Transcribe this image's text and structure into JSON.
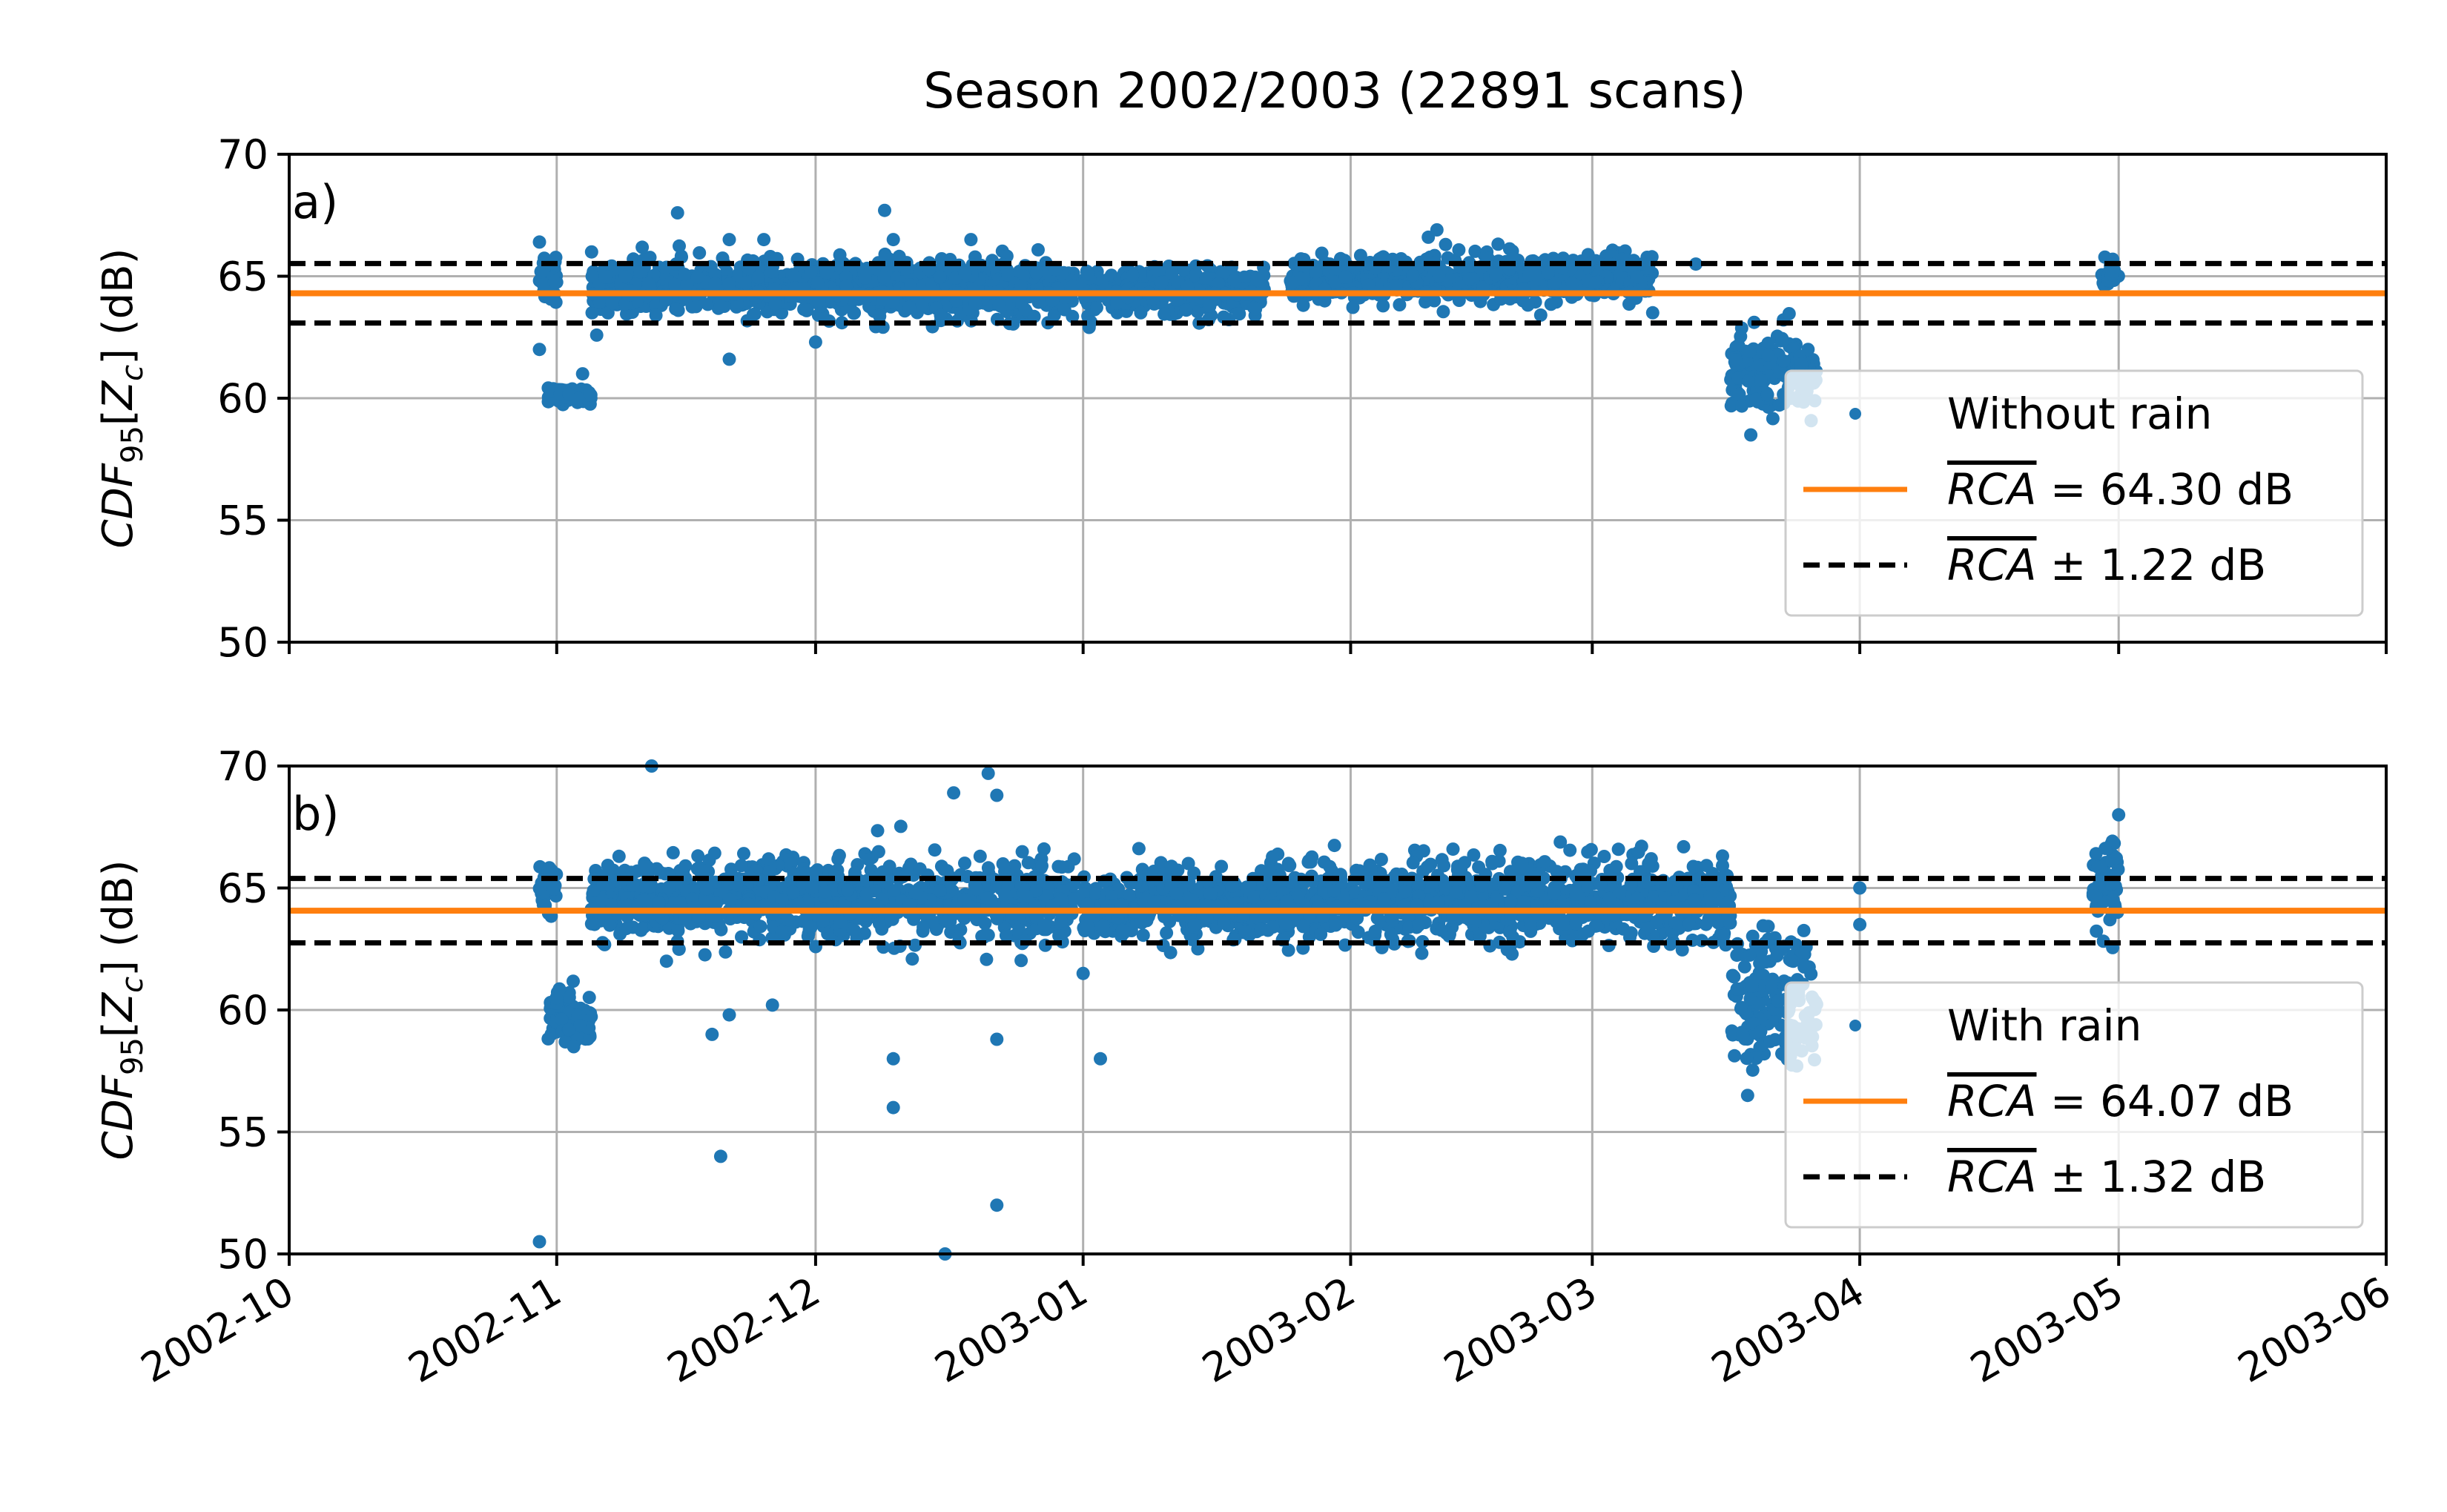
{
  "figure": {
    "title": "Season 2002/2003 (22891 scans)"
  },
  "chart_data": [
    {
      "type": "scatter",
      "panel_label": "a)",
      "ylabel": "CDF_95[Z_c] (dB)",
      "ylim": [
        50,
        70
      ],
      "yticks": [
        50,
        55,
        60,
        65,
        70
      ],
      "xlim": [
        "2002-10-01",
        "2003-06-01"
      ],
      "xticks": [
        "2002-10",
        "2002-11",
        "2002-12",
        "2003-01",
        "2003-02",
        "2003-03",
        "2003-04",
        "2003-05",
        "2003-06"
      ],
      "grid": true,
      "legend_position": "lower-right",
      "legend": {
        "points": "Without rain",
        "mean_name": "RCA",
        "mean_text": "= 64.30 dB",
        "band_name": "RCA",
        "band_text": "± 1.22 dB"
      },
      "rca_mean": 64.3,
      "rca_band": 1.22,
      "colors": {
        "points": "#1f77b4",
        "mean": "#ff7f0e",
        "band": "#000000"
      },
      "series": [
        {
          "name": "Without rain",
          "clusters": [
            {
              "start": "2002-10-30",
              "end": "2002-11-01",
              "center": 65.0,
              "spread": 0.6
            },
            {
              "start": "2002-10-31",
              "end": "2002-11-05",
              "center": 60.1,
              "spread": 0.15
            },
            {
              "start": "2002-11-05",
              "end": "2002-12-31",
              "center": 64.5,
              "spread": 0.55
            },
            {
              "start": "2003-01-01",
              "end": "2003-01-22",
              "center": 64.4,
              "spread": 0.45
            },
            {
              "start": "2003-01-25",
              "end": "2003-03-08",
              "center": 64.9,
              "spread": 0.45
            },
            {
              "start": "2003-03-17",
              "end": "2003-03-27",
              "center": 61.2,
              "spread": 0.8
            },
            {
              "start": "2003-04-29",
              "end": "2003-05-01",
              "center": 65.1,
              "spread": 0.25
            }
          ],
          "outliers": [
            [
              "2002-10-30",
              66.4
            ],
            [
              "2002-10-30",
              62.0
            ],
            [
              "2002-11-04",
              61.0
            ],
            [
              "2002-11-15",
              67.6
            ],
            [
              "2002-11-21",
              66.5
            ],
            [
              "2002-11-21",
              61.6
            ],
            [
              "2002-11-25",
              66.5
            ],
            [
              "2002-12-01",
              62.3
            ],
            [
              "2002-12-09",
              67.7
            ],
            [
              "2002-12-10",
              66.5
            ],
            [
              "2002-12-19",
              66.5
            ],
            [
              "2003-02-10",
              66.6
            ],
            [
              "2003-02-11",
              66.9
            ],
            [
              "2003-02-12",
              66.3
            ],
            [
              "2003-03-08",
              63.5
            ],
            [
              "2003-03-13",
              65.5
            ],
            [
              "2003-03-26",
              62.0
            ],
            [
              "2003-03-26",
              60.5
            ],
            [
              "2003-03-24",
              60.0
            ]
          ]
        }
      ]
    },
    {
      "type": "scatter",
      "panel_label": "b)",
      "ylabel": "CDF_95[Z_c] (dB)",
      "ylim": [
        50,
        70
      ],
      "yticks": [
        50,
        55,
        60,
        65,
        70
      ],
      "xlim": [
        "2002-10-01",
        "2003-06-01"
      ],
      "xticks": [
        "2002-10",
        "2002-11",
        "2002-12",
        "2003-01",
        "2003-02",
        "2003-03",
        "2003-04",
        "2003-05",
        "2003-06"
      ],
      "grid": true,
      "legend_position": "lower-right",
      "legend": {
        "points": "With rain",
        "mean_name": "RCA",
        "mean_text": "= 64.07 dB",
        "band_name": "RCA",
        "band_text": "± 1.32 dB"
      },
      "rca_mean": 64.07,
      "rca_band": 1.32,
      "colors": {
        "points": "#1f77b4",
        "mean": "#ff7f0e",
        "band": "#000000"
      },
      "series": [
        {
          "name": "With rain",
          "clusters": [
            {
              "start": "2002-10-30",
              "end": "2002-11-01",
              "center": 65.0,
              "spread": 0.5
            },
            {
              "start": "2002-10-31",
              "end": "2002-11-05",
              "center": 59.6,
              "spread": 0.6
            },
            {
              "start": "2002-11-05",
              "end": "2002-12-31",
              "center": 64.5,
              "spread": 0.8
            },
            {
              "start": "2003-01-01",
              "end": "2003-01-22",
              "center": 64.3,
              "spread": 0.7
            },
            {
              "start": "2003-01-22",
              "end": "2003-03-17",
              "center": 64.5,
              "spread": 0.8
            },
            {
              "start": "2003-03-17",
              "end": "2003-03-27",
              "center": 60.3,
              "spread": 1.4
            },
            {
              "start": "2003-04-28",
              "end": "2003-05-01",
              "center": 65.2,
              "spread": 0.9
            }
          ],
          "outliers": [
            [
              "2002-10-30",
              50.5
            ],
            [
              "2002-11-12",
              70.0
            ],
            [
              "2002-11-21",
              59.8
            ],
            [
              "2002-11-19",
              59.0
            ],
            [
              "2002-11-26",
              60.2
            ],
            [
              "2002-11-20",
              54.0
            ],
            [
              "2002-12-10",
              56.0
            ],
            [
              "2002-12-10",
              58.0
            ],
            [
              "2002-12-16",
              50.0
            ],
            [
              "2002-12-17",
              68.9
            ],
            [
              "2002-12-21",
              69.7
            ],
            [
              "2002-12-22",
              68.8
            ],
            [
              "2002-12-22",
              58.8
            ],
            [
              "2002-12-22",
              52.0
            ],
            [
              "2003-01-03",
              58.0
            ],
            [
              "2003-01-01",
              61.5
            ],
            [
              "2003-04-01",
              63.5
            ],
            [
              "2003-04-01",
              65.0
            ],
            [
              "2003-05-01",
              68.0
            ],
            [
              "2003-03-19",
              56.5
            ]
          ]
        }
      ]
    }
  ]
}
